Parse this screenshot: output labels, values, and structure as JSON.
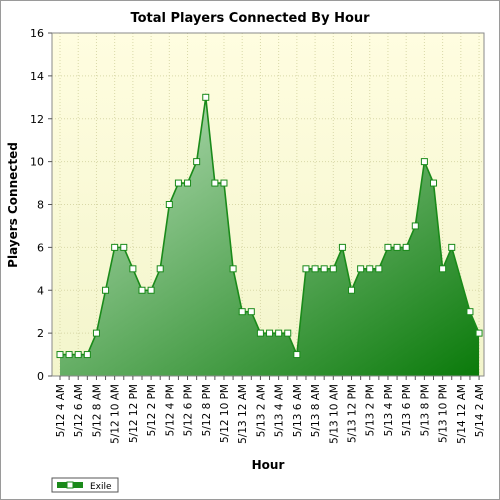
{
  "chart_data": {
    "type": "area",
    "title": "Total Players Connected By Hour",
    "xlabel": "Hour",
    "ylabel": "Players Connected",
    "ylim": [
      0,
      16
    ],
    "yticks": [
      0,
      2,
      4,
      6,
      8,
      10,
      12,
      14,
      16
    ],
    "grid": true,
    "legend_position": "bottom-left",
    "x": [
      "5/12 4 AM",
      "5/12 5 AM",
      "5/12 6 AM",
      "5/12 7 AM",
      "5/12 8 AM",
      "5/12 9 AM",
      "5/12 10 AM",
      "5/12 11 AM",
      "5/12 12 PM",
      "5/12 1 PM",
      "5/12 2 PM",
      "5/12 3 PM",
      "5/12 4 PM",
      "5/12 5 PM",
      "5/12 6 PM",
      "5/12 7 PM",
      "5/12 8 PM",
      "5/12 9 PM",
      "5/12 10 PM",
      "5/12 11 PM",
      "5/13 12 AM",
      "5/13 1 AM",
      "5/13 2 AM",
      "5/13 3 AM",
      "5/13 4 AM",
      "5/13 5 AM",
      "5/13 6 AM",
      "5/13 7 AM",
      "5/13 8 AM",
      "5/13 9 AM",
      "5/13 10 AM",
      "5/13 11 AM",
      "5/13 12 PM",
      "5/13 1 PM",
      "5/13 2 PM",
      "5/13 3 PM",
      "5/13 4 PM",
      "5/13 5 PM",
      "5/13 6 PM",
      "5/13 7 PM",
      "5/13 8 PM",
      "5/13 9 PM",
      "5/13 10 PM",
      "5/13 11 PM",
      "5/14 12 AM",
      "5/14 1 AM",
      "5/14 2 AM"
    ],
    "tick_labels": [
      "5/12 4 AM",
      "5/12 6 AM",
      "5/12 8 AM",
      "5/12 10 AM",
      "5/12 12 PM",
      "5/12 2 PM",
      "5/12 4 PM",
      "5/12 6 PM",
      "5/12 8 PM",
      "5/12 10 PM",
      "5/13 12 AM",
      "5/13 2 AM",
      "5/13 4 AM",
      "5/13 6 AM",
      "5/13 8 AM",
      "5/13 10 AM",
      "5/13 12 PM",
      "5/13 2 PM",
      "5/13 4 PM",
      "5/13 6 PM",
      "5/13 8 PM",
      "5/13 10 PM",
      "5/14 12 AM",
      "5/14 2 AM"
    ],
    "series": [
      {
        "name": "Exile",
        "color": "#1a8a1a",
        "values": [
          1,
          1,
          1,
          1,
          2,
          4,
          6,
          6,
          5,
          4,
          4,
          5,
          8,
          9,
          9,
          10,
          13,
          9,
          9,
          5,
          3,
          3,
          2,
          2,
          2,
          2,
          1,
          5,
          5,
          5,
          5,
          6,
          4,
          5,
          5,
          5,
          6,
          6,
          6,
          7,
          10,
          9,
          5,
          6,
          null,
          3,
          2
        ]
      }
    ]
  },
  "colors": {
    "plot_bg_top": "#fffde0",
    "plot_bg_bottom": "#f3f5cc",
    "line": "#1a8a1a",
    "fill_light": "#bfe2bf",
    "fill_dark": "#0a7a0a",
    "grid": "#d8d8a8",
    "border": "#9a9a9a"
  }
}
